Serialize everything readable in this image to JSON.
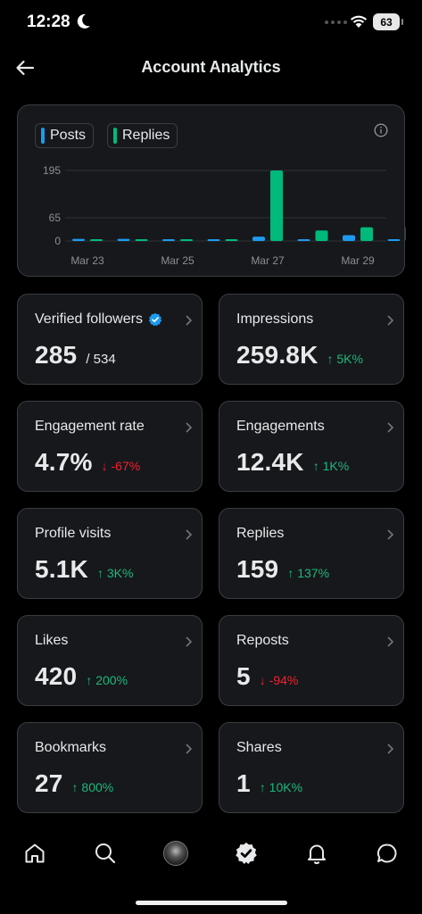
{
  "status_bar": {
    "time": "12:28",
    "battery": "63"
  },
  "header": {
    "title": "Account Analytics"
  },
  "chart": {
    "legend": [
      {
        "label": "Posts",
        "color": "#1d9bf0"
      },
      {
        "label": "Replies",
        "color": "#00ba7c"
      }
    ],
    "y_ticks": [
      "195",
      "65",
      "0"
    ],
    "x_ticks": [
      "Mar 23",
      "Mar 25",
      "Mar 27",
      "Mar 29"
    ]
  },
  "chart_data": {
    "type": "bar",
    "categories": [
      "Mar 23",
      "Mar 24",
      "Mar 25",
      "Mar 26",
      "Mar 27",
      "Mar 28",
      "Mar 29",
      "Mar 30"
    ],
    "series": [
      {
        "name": "Posts",
        "values": [
          6,
          6,
          2,
          5,
          12,
          3,
          16,
          4
        ]
      },
      {
        "name": "Replies",
        "values": [
          2,
          1,
          2,
          4,
          195,
          29,
          38,
          40
        ]
      }
    ],
    "ylim": [
      0,
      195
    ],
    "yticks": [
      0,
      65,
      195
    ]
  },
  "stats": [
    {
      "label": "Verified followers",
      "value": "285",
      "sub": "/ 534",
      "verified": true
    },
    {
      "label": "Impressions",
      "value": "259.8K",
      "delta": "↑ 5K%",
      "dir": "up"
    },
    {
      "label": "Engagement rate",
      "value": "4.7%",
      "delta": "↓ -67%",
      "dir": "down"
    },
    {
      "label": "Engagements",
      "value": "12.4K",
      "delta": "↑ 1K%",
      "dir": "up"
    },
    {
      "label": "Profile visits",
      "value": "5.1K",
      "delta": "↑ 3K%",
      "dir": "up"
    },
    {
      "label": "Replies",
      "value": "159",
      "delta": "↑ 137%",
      "dir": "up"
    },
    {
      "label": "Likes",
      "value": "420",
      "delta": "↑ 200%",
      "dir": "up"
    },
    {
      "label": "Reposts",
      "value": "5",
      "delta": "↓ -94%",
      "dir": "down"
    },
    {
      "label": "Bookmarks",
      "value": "27",
      "delta": "↑ 800%",
      "dir": "up"
    },
    {
      "label": "Shares",
      "value": "1",
      "delta": "↑ 10K%",
      "dir": "up"
    }
  ],
  "nav": [
    "home-icon",
    "search-icon",
    "profile-avatar",
    "verified-icon",
    "notifications-bell-icon",
    "messages-icon"
  ]
}
